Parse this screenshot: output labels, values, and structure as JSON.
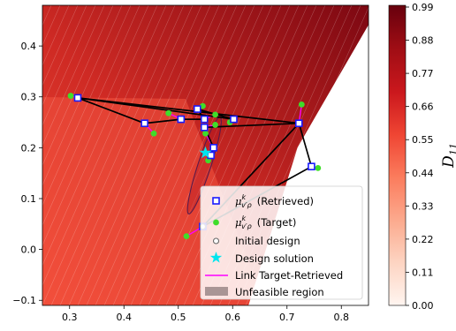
{
  "chart_data": {
    "type": "scatter",
    "title": "",
    "xlabel": "",
    "ylabel": "",
    "xlim": [
      0.25,
      0.85
    ],
    "ylim": [
      -0.11,
      0.48
    ],
    "x_ticks": [
      0.3,
      0.4,
      0.5,
      0.6,
      0.7,
      0.8
    ],
    "x_tick_labels": [
      "0.3",
      "0.4",
      "0.5",
      "0.6",
      "0.7",
      "0.8"
    ],
    "y_ticks": [
      -0.1,
      0.0,
      0.1,
      0.2,
      0.3,
      0.4
    ],
    "y_tick_labels": [
      "−0.1",
      "0.0",
      "0.1",
      "0.2",
      "0.3",
      "0.4"
    ],
    "colorbar": {
      "label_base": "D",
      "label_sub": "11",
      "ticks": [
        0.0,
        0.11,
        0.22,
        0.33,
        0.44,
        0.55,
        0.66,
        0.77,
        0.88,
        0.99
      ],
      "tick_labels": [
        "0.00",
        "0.11",
        "0.22",
        "0.33",
        "0.44",
        "0.55",
        "0.66",
        "0.77",
        "0.88",
        "0.99"
      ],
      "colors": [
        "#fff5f0",
        "#fdd5c3",
        "#fcab8f",
        "#fb7b5c",
        "#ef4533",
        "#cb181d",
        "#9e0d14",
        "#67000d"
      ]
    },
    "unfeasible_region": [
      [
        0.85,
        0.44
      ],
      [
        0.72,
        0.2
      ],
      [
        0.63,
        -0.11
      ],
      [
        0.85,
        -0.11
      ]
    ],
    "initial_design": {
      "x": 0.545,
      "y": 0.045
    },
    "design_solution": {
      "x": 0.55,
      "y": 0.19
    },
    "retrieved": [
      {
        "x": 0.315,
        "y": 0.298
      },
      {
        "x": 0.438,
        "y": 0.248
      },
      {
        "x": 0.505,
        "y": 0.256
      },
      {
        "x": 0.535,
        "y": 0.276
      },
      {
        "x": 0.548,
        "y": 0.256
      },
      {
        "x": 0.548,
        "y": 0.24
      },
      {
        "x": 0.602,
        "y": 0.256
      },
      {
        "x": 0.722,
        "y": 0.248
      },
      {
        "x": 0.745,
        "y": 0.163
      },
      {
        "x": 0.565,
        "y": 0.2
      },
      {
        "x": 0.56,
        "y": 0.185
      },
      {
        "x": 0.545,
        "y": 0.045
      }
    ],
    "targets": [
      {
        "x": 0.302,
        "y": 0.302
      },
      {
        "x": 0.455,
        "y": 0.228
      },
      {
        "x": 0.482,
        "y": 0.268
      },
      {
        "x": 0.545,
        "y": 0.282
      },
      {
        "x": 0.568,
        "y": 0.265
      },
      {
        "x": 0.568,
        "y": 0.245
      },
      {
        "x": 0.595,
        "y": 0.25
      },
      {
        "x": 0.727,
        "y": 0.285
      },
      {
        "x": 0.757,
        "y": 0.16
      },
      {
        "x": 0.55,
        "y": 0.228
      },
      {
        "x": 0.555,
        "y": 0.175
      },
      {
        "x": 0.515,
        "y": 0.026
      }
    ],
    "path_order": [
      0,
      1,
      2,
      4,
      3,
      6,
      0,
      7,
      8,
      11,
      7,
      5,
      9,
      10
    ],
    "ellipse": {
      "cx": 0.548,
      "cy": 0.165,
      "rx": 0.012,
      "ry": 0.1,
      "angle_deg": 18
    },
    "legend": {
      "position": "lower-right",
      "entries": [
        {
          "key": "retrieved",
          "label_math": "μ",
          "label_sup": "k",
          "label_sub": "v′ρ",
          "label_text": "(Retrieved)"
        },
        {
          "key": "target",
          "label_math": "μ",
          "label_sup": "k",
          "label_sub": "v′ρ",
          "label_text": "(Target)"
        },
        {
          "key": "initial",
          "label_text": "Initial design"
        },
        {
          "key": "solution",
          "label_text": "Design solution"
        },
        {
          "key": "link",
          "label_text": "Link Target-Retrieved"
        },
        {
          "key": "unfeasible",
          "label_text": "Unfeasible region"
        }
      ]
    },
    "series_colors": {
      "retrieved_edge": "#1a1aff",
      "target_fill": "#3fdd2a",
      "link": "#ff00ff",
      "path": "#000000",
      "solution": "#00e5ee",
      "contour": "#ffffff"
    }
  }
}
